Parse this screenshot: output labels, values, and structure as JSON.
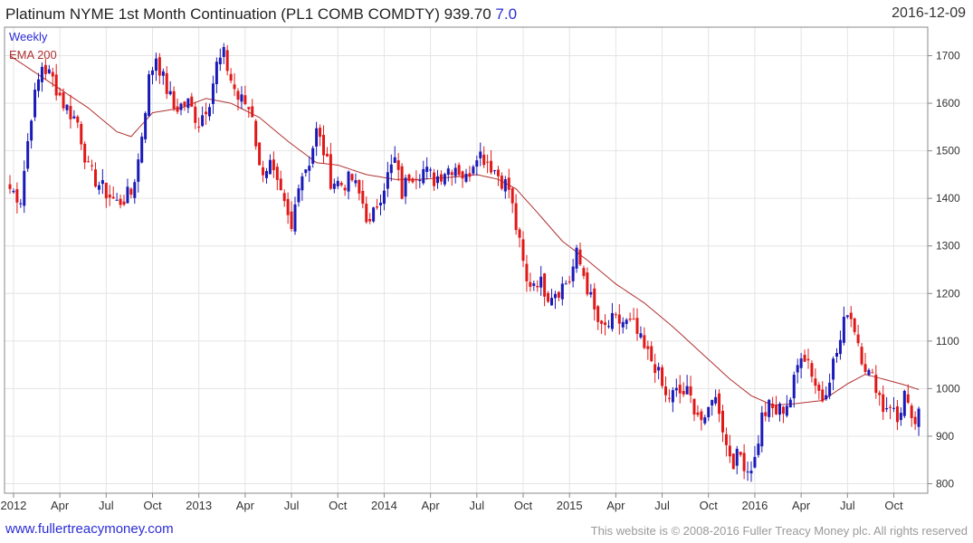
{
  "header": {
    "title": "Platinum NYME 1st Month Continuation (PL1 COMB COMDTY) 939.70",
    "change": "7.0",
    "date": "2016-12-09"
  },
  "footer": {
    "site": "www.fullertreacymoney.com",
    "copyright": "This website is © 2008-2016 Fuller Treacy Money plc. All rights reserved"
  },
  "chart_data": {
    "type": "candlestick",
    "legend": [
      {
        "label": "Weekly",
        "color": "#2b2bd8"
      },
      {
        "label": "EMA 200",
        "color": "#b03030"
      }
    ],
    "up_color": "#1a1ab8",
    "down_color": "#e01818",
    "ema_color": "#b03030",
    "ylim": [
      780,
      1760
    ],
    "yticks": [
      800,
      900,
      1000,
      1100,
      1200,
      1300,
      1400,
      1500,
      1600,
      1700
    ],
    "xlim": [
      0,
      256
    ],
    "xticks": [
      {
        "label": "2012",
        "week": 1
      },
      {
        "label": "Apr",
        "week": 14
      },
      {
        "label": "Jul",
        "week": 27
      },
      {
        "label": "Oct",
        "week": 40
      },
      {
        "label": "2013",
        "week": 53
      },
      {
        "label": "Apr",
        "week": 66
      },
      {
        "label": "Jul",
        "week": 79
      },
      {
        "label": "Oct",
        "week": 92
      },
      {
        "label": "2014",
        "week": 105
      },
      {
        "label": "Apr",
        "week": 118
      },
      {
        "label": "Jul",
        "week": 131
      },
      {
        "label": "Oct",
        "week": 144
      },
      {
        "label": "2015",
        "week": 157
      },
      {
        "label": "Apr",
        "week": 170
      },
      {
        "label": "Jul",
        "week": 183
      },
      {
        "label": "Oct",
        "week": 196
      },
      {
        "label": "2016",
        "week": 209
      },
      {
        "label": "Apr",
        "week": 222
      },
      {
        "label": "Jul",
        "week": 235
      },
      {
        "label": "Oct",
        "week": 248
      }
    ],
    "close_anchors": [
      [
        0,
        1420
      ],
      [
        3,
        1400
      ],
      [
        6,
        1580
      ],
      [
        9,
        1680
      ],
      [
        12,
        1650
      ],
      [
        15,
        1600
      ],
      [
        19,
        1560
      ],
      [
        22,
        1460
      ],
      [
        26,
        1420
      ],
      [
        30,
        1390
      ],
      [
        34,
        1410
      ],
      [
        36,
        1480
      ],
      [
        39,
        1650
      ],
      [
        41,
        1700
      ],
      [
        43,
        1650
      ],
      [
        46,
        1590
      ],
      [
        50,
        1600
      ],
      [
        53,
        1560
      ],
      [
        56,
        1610
      ],
      [
        58,
        1680
      ],
      [
        60,
        1700
      ],
      [
        62,
        1650
      ],
      [
        64,
        1610
      ],
      [
        66,
        1600
      ],
      [
        68,
        1580
      ],
      [
        70,
        1460
      ],
      [
        73,
        1470
      ],
      [
        75,
        1420
      ],
      [
        77,
        1380
      ],
      [
        79,
        1330
      ],
      [
        81,
        1440
      ],
      [
        84,
        1480
      ],
      [
        86,
        1540
      ],
      [
        88,
        1500
      ],
      [
        90,
        1440
      ],
      [
        93,
        1430
      ],
      [
        96,
        1440
      ],
      [
        99,
        1390
      ],
      [
        101,
        1340
      ],
      [
        103,
        1390
      ],
      [
        105,
        1430
      ],
      [
        108,
        1480
      ],
      [
        110,
        1410
      ],
      [
        112,
        1450
      ],
      [
        116,
        1460
      ],
      [
        119,
        1440
      ],
      [
        122,
        1460
      ],
      [
        125,
        1470
      ],
      [
        128,
        1440
      ],
      [
        131,
        1500
      ],
      [
        134,
        1480
      ],
      [
        137,
        1450
      ],
      [
        140,
        1420
      ],
      [
        143,
        1300
      ],
      [
        145,
        1220
      ],
      [
        148,
        1230
      ],
      [
        151,
        1200
      ],
      [
        154,
        1210
      ],
      [
        157,
        1230
      ],
      [
        159,
        1280
      ],
      [
        161,
        1240
      ],
      [
        164,
        1160
      ],
      [
        166,
        1120
      ],
      [
        169,
        1140
      ],
      [
        172,
        1140
      ],
      [
        175,
        1130
      ],
      [
        178,
        1080
      ],
      [
        181,
        1050
      ],
      [
        184,
        980
      ],
      [
        187,
        990
      ],
      [
        190,
        990
      ],
      [
        193,
        950
      ],
      [
        195,
        920
      ],
      [
        197,
        990
      ],
      [
        199,
        960
      ],
      [
        201,
        880
      ],
      [
        203,
        850
      ],
      [
        205,
        860
      ],
      [
        207,
        830
      ],
      [
        209,
        850
      ],
      [
        211,
        940
      ],
      [
        213,
        960
      ],
      [
        215,
        950
      ],
      [
        217,
        960
      ],
      [
        219,
        980
      ],
      [
        222,
        1080
      ],
      [
        224,
        1060
      ],
      [
        226,
        1010
      ],
      [
        228,
        980
      ],
      [
        230,
        1030
      ],
      [
        233,
        1100
      ],
      [
        235,
        1170
      ],
      [
        237,
        1130
      ],
      [
        239,
        1070
      ],
      [
        241,
        1030
      ],
      [
        243,
        1010
      ],
      [
        245,
        960
      ],
      [
        247,
        970
      ],
      [
        249,
        930
      ],
      [
        251,
        990
      ],
      [
        253,
        920
      ],
      [
        255,
        940
      ]
    ],
    "ema_anchors": [
      [
        0,
        1700
      ],
      [
        12,
        1640
      ],
      [
        22,
        1590
      ],
      [
        30,
        1540
      ],
      [
        34,
        1530
      ],
      [
        40,
        1580
      ],
      [
        48,
        1590
      ],
      [
        55,
        1610
      ],
      [
        62,
        1600
      ],
      [
        70,
        1570
      ],
      [
        78,
        1520
      ],
      [
        86,
        1475
      ],
      [
        92,
        1470
      ],
      [
        100,
        1450
      ],
      [
        108,
        1440
      ],
      [
        115,
        1440
      ],
      [
        125,
        1445
      ],
      [
        131,
        1450
      ],
      [
        137,
        1440
      ],
      [
        142,
        1420
      ],
      [
        148,
        1370
      ],
      [
        155,
        1310
      ],
      [
        162,
        1270
      ],
      [
        170,
        1220
      ],
      [
        178,
        1180
      ],
      [
        186,
        1130
      ],
      [
        194,
        1075
      ],
      [
        202,
        1020
      ],
      [
        208,
        985
      ],
      [
        214,
        965
      ],
      [
        220,
        968
      ],
      [
        228,
        975
      ],
      [
        235,
        1010
      ],
      [
        240,
        1030
      ],
      [
        245,
        1020
      ],
      [
        250,
        1010
      ],
      [
        255,
        998
      ]
    ]
  }
}
